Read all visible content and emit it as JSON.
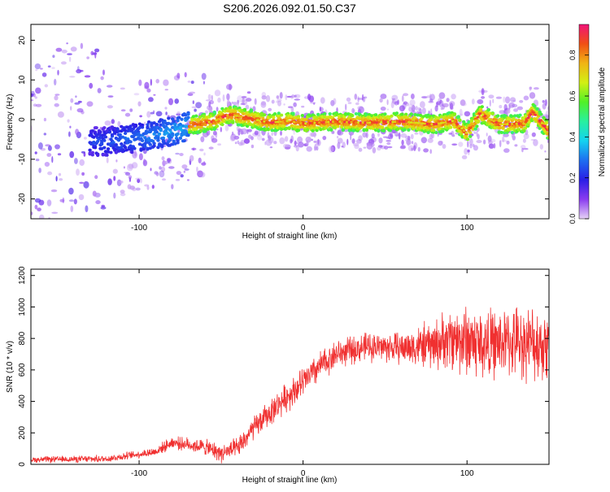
{
  "title": "S206.2026.092.01.50.C37",
  "chart_data": [
    {
      "type": "heatmap",
      "xlabel": "Height of straight line (km)",
      "ylabel": "Frequency (Hz)",
      "xlim": [
        -166,
        150
      ],
      "ylim": [
        -25,
        24
      ],
      "x_ticks": [
        -100,
        0,
        100
      ],
      "y_ticks": [
        20,
        10,
        0,
        -10,
        -20
      ],
      "colorbar": {
        "label": "Normalized spectral amplitude",
        "range": [
          0.0,
          0.95
        ],
        "ticks": [
          0.0,
          0.2,
          0.4,
          0.6,
          0.8
        ],
        "colors": [
          "#e6d2f5",
          "#8a3cf0",
          "#2a1ee6",
          "#1e6ef0",
          "#14d2f0",
          "#28f0a0",
          "#50f028",
          "#d2f014",
          "#f0b414",
          "#f05014",
          "#f01478"
        ]
      },
      "ridge": {
        "x": [
          -120,
          -100,
          -80,
          -70,
          -55,
          -45,
          -35,
          -20,
          -10,
          0,
          20,
          40,
          60,
          80,
          92,
          100,
          108,
          120,
          135,
          140,
          150
        ],
        "y": [
          -5.5,
          -4.5,
          -3,
          -1.5,
          -0.5,
          1.3,
          0.5,
          -0.8,
          -0.3,
          -1,
          -0.5,
          -0.8,
          -0.5,
          -1.2,
          -0.3,
          -3.5,
          1.5,
          -1.2,
          -1,
          2,
          -3
        ]
      }
    },
    {
      "type": "line",
      "xlabel": "Height of straight line (km)",
      "ylabel": "SNR (10 * v/v)",
      "xlim": [
        -166,
        150
      ],
      "ylim": [
        0,
        1240
      ],
      "x_ticks": [
        -100,
        0,
        100
      ],
      "y_ticks": [
        0,
        200,
        400,
        600,
        800,
        1000,
        1200
      ],
      "color": "#f03030",
      "trend": {
        "x": [
          -166,
          -120,
          -90,
          -80,
          -60,
          -50,
          -40,
          -30,
          -20,
          -10,
          0,
          10,
          20,
          40,
          60,
          80,
          90,
          100,
          110,
          130,
          150
        ],
        "y": [
          30,
          35,
          80,
          140,
          110,
          70,
          100,
          230,
          330,
          430,
          520,
          620,
          700,
          750,
          740,
          760,
          800,
          790,
          760,
          780,
          760
        ]
      },
      "noise": {
        "x": [
          -166,
          -100,
          -60,
          -30,
          0,
          30,
          60,
          85,
          100,
          120,
          150
        ],
        "y": [
          15,
          20,
          40,
          60,
          80,
          70,
          80,
          140,
          190,
          170,
          190
        ]
      }
    }
  ]
}
